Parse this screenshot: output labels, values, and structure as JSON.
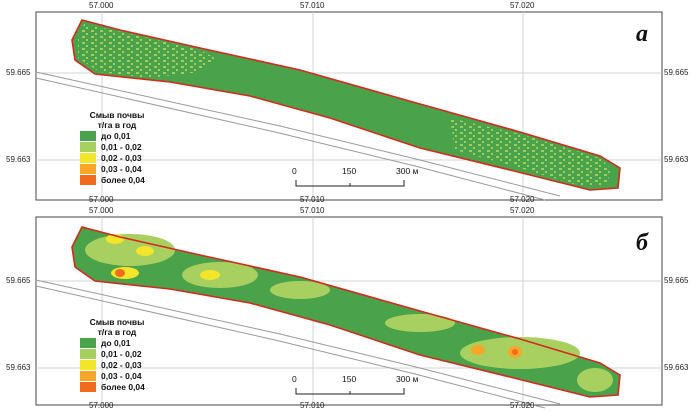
{
  "panels": [
    {
      "letter": "а",
      "coords_top": [
        "57.000",
        "57.010",
        "57.020"
      ],
      "coords_bottom": [
        "57.000",
        "57.010",
        "57.020"
      ],
      "lat_left": [
        "59.665",
        "59.663"
      ],
      "lat_right": [
        "59.665",
        "59.663"
      ]
    },
    {
      "letter": "б",
      "coords_top": [
        "57.000",
        "57.010",
        "57.020"
      ],
      "coords_bottom": [
        "57.000",
        "57.010",
        "57.020"
      ],
      "lat_left": [
        "59.665",
        "59.663"
      ],
      "lat_right": [
        "59.665",
        "59.663"
      ]
    }
  ],
  "legend": {
    "title_line1": "Смыв почвы",
    "title_line2": "т/га в год",
    "classes": [
      {
        "label": "до 0,01",
        "color": "#4aa34a"
      },
      {
        "label": "0,01 - 0,02",
        "color": "#a8d060"
      },
      {
        "label": "0,02 - 0,03",
        "color": "#f2e52a"
      },
      {
        "label": "0,03 - 0,04",
        "color": "#f7a628"
      },
      {
        "label": "более 0,04",
        "color": "#f26a1c"
      }
    ]
  },
  "scale_bar": {
    "labels": [
      "0",
      "150",
      "300 м"
    ]
  },
  "colors": {
    "field_outline": "#d42a1e",
    "road": "#9a9a9a",
    "grid": "#c8c8c8",
    "frame": "#444444"
  }
}
